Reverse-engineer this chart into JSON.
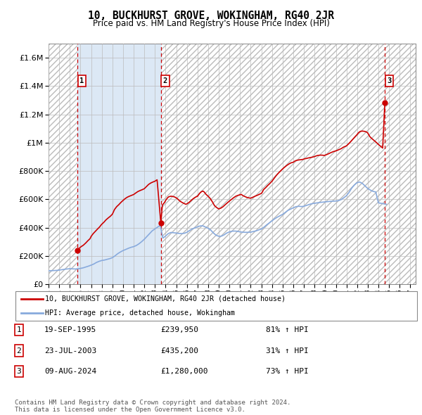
{
  "title": "10, BUCKHURST GROVE, WOKINGHAM, RG40 2JR",
  "subtitle": "Price paid vs. HM Land Registry's House Price Index (HPI)",
  "ylim": [
    0,
    1700000
  ],
  "xlim_start": 1993.0,
  "xlim_end": 2027.5,
  "sale_color": "#cc0000",
  "hpi_color": "#88aadd",
  "shade_color": "#dce8f5",
  "dashed_color": "#cc0000",
  "yticks": [
    0,
    200000,
    400000,
    600000,
    800000,
    1000000,
    1200000,
    1400000,
    1600000
  ],
  "xticks": [
    1993,
    1994,
    1995,
    1996,
    1997,
    1998,
    1999,
    2000,
    2001,
    2002,
    2003,
    2004,
    2005,
    2006,
    2007,
    2008,
    2009,
    2010,
    2011,
    2012,
    2013,
    2014,
    2015,
    2016,
    2017,
    2018,
    2019,
    2020,
    2021,
    2022,
    2023,
    2024,
    2025,
    2026,
    2027
  ],
  "sale_points": [
    {
      "year": 1995.72,
      "price": 239950,
      "label": "1"
    },
    {
      "year": 2003.55,
      "price": 435200,
      "label": "2"
    },
    {
      "year": 2024.6,
      "price": 1280000,
      "label": "3"
    }
  ],
  "dashed_lines": [
    1995.72,
    2003.55,
    2024.6
  ],
  "shade_region": [
    1995.72,
    2003.55
  ],
  "legend_sale_label": "10, BUCKHURST GROVE, WOKINGHAM, RG40 2JR (detached house)",
  "legend_hpi_label": "HPI: Average price, detached house, Wokingham",
  "table_rows": [
    {
      "num": "1",
      "date": "19-SEP-1995",
      "price": "£239,950",
      "change": "81% ↑ HPI"
    },
    {
      "num": "2",
      "date": "23-JUL-2003",
      "price": "£435,200",
      "change": "31% ↑ HPI"
    },
    {
      "num": "3",
      "date": "09-AUG-2024",
      "price": "£1,280,000",
      "change": "73% ↑ HPI"
    }
  ],
  "footnote": "Contains HM Land Registry data © Crown copyright and database right 2024.\nThis data is licensed under the Open Government Licence v3.0.",
  "hpi_years": [
    1993.0,
    1993.25,
    1993.5,
    1993.75,
    1994.0,
    1994.25,
    1994.5,
    1994.75,
    1995.0,
    1995.25,
    1995.5,
    1995.75,
    1996.0,
    1996.25,
    1996.5,
    1996.75,
    1997.0,
    1997.25,
    1997.5,
    1997.75,
    1998.0,
    1998.25,
    1998.5,
    1998.75,
    1999.0,
    1999.25,
    1999.5,
    1999.75,
    2000.0,
    2000.25,
    2000.5,
    2000.75,
    2001.0,
    2001.25,
    2001.5,
    2001.75,
    2002.0,
    2002.25,
    2002.5,
    2002.75,
    2003.0,
    2003.25,
    2003.5,
    2003.75,
    2004.0,
    2004.25,
    2004.5,
    2004.75,
    2005.0,
    2005.25,
    2005.5,
    2005.75,
    2006.0,
    2006.25,
    2006.5,
    2006.75,
    2007.0,
    2007.25,
    2007.5,
    2007.75,
    2008.0,
    2008.25,
    2008.5,
    2008.75,
    2009.0,
    2009.25,
    2009.5,
    2009.75,
    2010.0,
    2010.25,
    2010.5,
    2010.75,
    2011.0,
    2011.25,
    2011.5,
    2011.75,
    2012.0,
    2012.25,
    2012.5,
    2012.75,
    2013.0,
    2013.25,
    2013.5,
    2013.75,
    2014.0,
    2014.25,
    2014.5,
    2014.75,
    2015.0,
    2015.25,
    2015.5,
    2015.75,
    2016.0,
    2016.25,
    2016.5,
    2016.75,
    2017.0,
    2017.25,
    2017.5,
    2017.75,
    2018.0,
    2018.25,
    2018.5,
    2018.75,
    2019.0,
    2019.25,
    2019.5,
    2019.75,
    2020.0,
    2020.25,
    2020.5,
    2020.75,
    2021.0,
    2021.25,
    2021.5,
    2021.75,
    2022.0,
    2022.25,
    2022.5,
    2022.75,
    2023.0,
    2023.25,
    2023.5,
    2023.75,
    2024.0,
    2024.25,
    2024.5,
    2024.75
  ],
  "hpi_values": [
    95000,
    96000,
    97000,
    98000,
    100000,
    103000,
    106000,
    108000,
    110000,
    109000,
    108000,
    109000,
    112000,
    116000,
    122000,
    128000,
    135000,
    143000,
    154000,
    162000,
    168000,
    171000,
    176000,
    181000,
    188000,
    201000,
    216000,
    228000,
    238000,
    246000,
    254000,
    261000,
    266000,
    274000,
    286000,
    301000,
    318000,
    338000,
    358000,
    378000,
    391000,
    404000,
    416000,
    326000,
    341000,
    358000,
    366000,
    364000,
    362000,
    359000,
    358000,
    360000,
    367000,
    380000,
    391000,
    398000,
    406000,
    412000,
    413000,
    404000,
    396000,
    382000,
    362000,
    346000,
    339000,
    340000,
    349000,
    362000,
    370000,
    375000,
    376000,
    374000,
    370000,
    368000,
    367000,
    367000,
    368000,
    373000,
    377000,
    384000,
    390000,
    404000,
    420000,
    434000,
    448000,
    462000,
    474000,
    484000,
    494000,
    508000,
    522000,
    531000,
    540000,
    548000,
    551000,
    549000,
    551000,
    557000,
    564000,
    569000,
    572000,
    575000,
    578000,
    580000,
    582000,
    584000,
    586000,
    587000,
    588000,
    591000,
    598000,
    611000,
    626000,
    650000,
    680000,
    702000,
    718000,
    722000,
    712000,
    694000,
    676000,
    665000,
    656000,
    652000,
    575000,
    572000,
    568000,
    565000
  ],
  "sale_years": [
    1995.72,
    1995.8,
    1996.0,
    1996.1,
    1996.2,
    1996.3,
    1996.5,
    1996.7,
    1996.9,
    1997.0,
    1997.1,
    1997.2,
    1997.4,
    1997.6,
    1997.8,
    1997.9,
    1998.0,
    1998.2,
    1998.4,
    1998.6,
    1998.8,
    1999.0,
    1999.1,
    1999.2,
    1999.4,
    1999.6,
    1999.8,
    2000.0,
    2000.2,
    2000.4,
    2000.6,
    2000.8,
    2001.0,
    2001.2,
    2001.4,
    2001.6,
    2001.8,
    2002.0,
    2002.2,
    2002.4,
    2002.6,
    2002.8,
    2003.0,
    2003.2,
    2003.55,
    2003.7,
    2003.9,
    2004.0,
    2004.1,
    2004.2,
    2004.3,
    2004.5,
    2004.7,
    2004.9,
    2005.0,
    2005.1,
    2005.2,
    2005.3,
    2005.5,
    2005.7,
    2005.9,
    2006.0,
    2006.2,
    2006.4,
    2006.6,
    2006.8,
    2007.0,
    2007.1,
    2007.2,
    2007.3,
    2007.4,
    2007.5,
    2007.6,
    2007.7,
    2007.8,
    2008.0,
    2008.2,
    2008.4,
    2008.5,
    2008.6,
    2008.8,
    2009.0,
    2009.2,
    2009.4,
    2009.6,
    2009.8,
    2010.0,
    2010.2,
    2010.4,
    2010.6,
    2010.8,
    2011.0,
    2011.1,
    2011.2,
    2011.3,
    2011.5,
    2011.7,
    2012.0,
    2012.2,
    2012.4,
    2012.6,
    2012.8,
    2013.0,
    2013.1,
    2013.2,
    2013.4,
    2013.6,
    2013.8,
    2014.0,
    2014.2,
    2014.4,
    2014.6,
    2014.8,
    2015.0,
    2015.2,
    2015.4,
    2015.6,
    2015.8,
    2016.0,
    2016.1,
    2016.2,
    2016.3,
    2016.5,
    2016.7,
    2016.9,
    2017.0,
    2017.2,
    2017.4,
    2017.6,
    2017.8,
    2018.0,
    2018.1,
    2018.2,
    2018.3,
    2018.5,
    2018.7,
    2018.9,
    2019.0,
    2019.2,
    2019.4,
    2019.6,
    2019.8,
    2020.0,
    2020.2,
    2020.5,
    2020.7,
    2021.0,
    2021.2,
    2021.4,
    2021.6,
    2021.8,
    2022.0,
    2022.1,
    2022.2,
    2022.3,
    2022.5,
    2022.7,
    2022.9,
    2023.0,
    2023.1,
    2023.2,
    2023.4,
    2023.6,
    2023.8,
    2024.0,
    2024.2,
    2024.4,
    2024.6
  ],
  "sale_values": [
    239950,
    248000,
    262000,
    268000,
    272000,
    278000,
    292000,
    308000,
    322000,
    338000,
    348000,
    358000,
    374000,
    390000,
    405000,
    415000,
    424000,
    438000,
    455000,
    468000,
    480000,
    495000,
    512000,
    528000,
    548000,
    562000,
    578000,
    592000,
    605000,
    615000,
    622000,
    628000,
    634000,
    645000,
    655000,
    662000,
    668000,
    675000,
    690000,
    705000,
    715000,
    722000,
    728000,
    738000,
    435200,
    560000,
    578000,
    592000,
    602000,
    612000,
    618000,
    622000,
    620000,
    615000,
    610000,
    605000,
    598000,
    590000,
    580000,
    572000,
    565000,
    568000,
    578000,
    592000,
    605000,
    615000,
    622000,
    632000,
    642000,
    650000,
    655000,
    658000,
    654000,
    645000,
    635000,
    622000,
    605000,
    582000,
    568000,
    555000,
    542000,
    532000,
    538000,
    548000,
    562000,
    575000,
    588000,
    600000,
    612000,
    622000,
    628000,
    632000,
    635000,
    630000,
    625000,
    618000,
    612000,
    608000,
    615000,
    622000,
    628000,
    635000,
    642000,
    652000,
    668000,
    682000,
    698000,
    712000,
    728000,
    748000,
    768000,
    785000,
    800000,
    815000,
    828000,
    840000,
    850000,
    858000,
    862000,
    868000,
    872000,
    875000,
    878000,
    880000,
    882000,
    885000,
    888000,
    892000,
    895000,
    898000,
    902000,
    905000,
    908000,
    910000,
    912000,
    912000,
    910000,
    912000,
    918000,
    925000,
    932000,
    938000,
    942000,
    948000,
    958000,
    968000,
    978000,
    992000,
    1008000,
    1025000,
    1042000,
    1058000,
    1068000,
    1075000,
    1080000,
    1082000,
    1080000,
    1075000,
    1068000,
    1055000,
    1042000,
    1028000,
    1015000,
    1002000,
    988000,
    975000,
    962000,
    1280000
  ]
}
